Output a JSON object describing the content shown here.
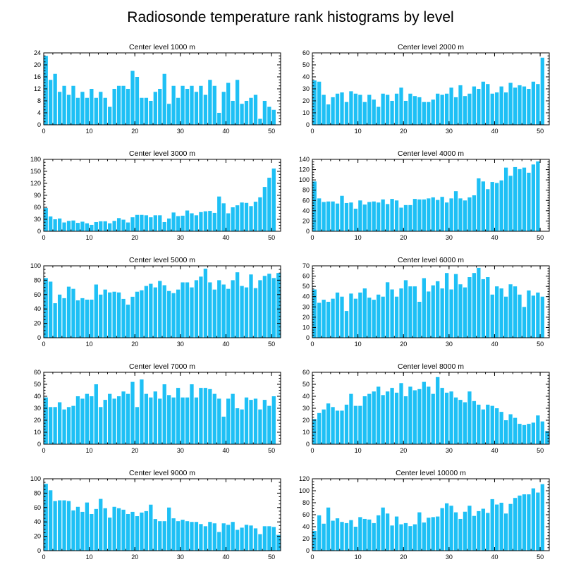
{
  "figure": {
    "title": "Radiosonde temperature rank histograms by level",
    "bar_color": "#1ec0f5",
    "axis_color": "#000000"
  },
  "chart_data": [
    {
      "type": "bar",
      "title": "Center level 1000 m",
      "x": [
        0,
        1,
        2,
        3,
        4,
        5,
        6,
        7,
        8,
        9,
        10,
        11,
        12,
        13,
        14,
        15,
        16,
        17,
        18,
        19,
        20,
        21,
        22,
        23,
        24,
        25,
        26,
        27,
        28,
        29,
        30,
        31,
        32,
        33,
        34,
        35,
        36,
        37,
        38,
        39,
        40,
        41,
        42,
        43,
        44,
        45,
        46,
        47,
        48,
        49,
        50,
        51
      ],
      "values": [
        23,
        15,
        17,
        11,
        13,
        10,
        13,
        9,
        11,
        9,
        12,
        9,
        11,
        9,
        6,
        12,
        13,
        13,
        12,
        18,
        16,
        9,
        9,
        8,
        11,
        12,
        17,
        7,
        13,
        9,
        13,
        12,
        13,
        11,
        13,
        10,
        15,
        13,
        4,
        11,
        14,
        8,
        15,
        7,
        8,
        9,
        10,
        2,
        8,
        6,
        5,
        0
      ],
      "xlim": [
        0,
        52
      ],
      "ylim": [
        0,
        24
      ],
      "xticks": [
        0,
        10,
        20,
        30,
        40,
        50
      ],
      "yticks": [
        0,
        4,
        8,
        12,
        16,
        20,
        24
      ]
    },
    {
      "type": "bar",
      "title": "Center level 2000 m",
      "x": [
        0,
        1,
        2,
        3,
        4,
        5,
        6,
        7,
        8,
        9,
        10,
        11,
        12,
        13,
        14,
        15,
        16,
        17,
        18,
        19,
        20,
        21,
        22,
        23,
        24,
        25,
        26,
        27,
        28,
        29,
        30,
        31,
        32,
        33,
        34,
        35,
        36,
        37,
        38,
        39,
        40,
        41,
        42,
        43,
        44,
        45,
        46,
        47,
        48,
        49,
        50,
        51
      ],
      "values": [
        37,
        36,
        25,
        17,
        23,
        26,
        27,
        19,
        28,
        26,
        25,
        19,
        25,
        21,
        15,
        26,
        25,
        20,
        26,
        31,
        20,
        26,
        24,
        23,
        19,
        19,
        21,
        26,
        25,
        26,
        31,
        23,
        33,
        24,
        26,
        32,
        30,
        36,
        34,
        26,
        27,
        32,
        27,
        35,
        31,
        33,
        32,
        30,
        36,
        34,
        56,
        0
      ],
      "xlim": [
        0,
        52
      ],
      "ylim": [
        0,
        60
      ],
      "xticks": [
        0,
        10,
        20,
        30,
        40,
        50
      ],
      "yticks": [
        0,
        10,
        20,
        30,
        40,
        50,
        60
      ]
    },
    {
      "type": "bar",
      "title": "Center level 3000 m",
      "x": [
        0,
        1,
        2,
        3,
        4,
        5,
        6,
        7,
        8,
        9,
        10,
        11,
        12,
        13,
        14,
        15,
        16,
        17,
        18,
        19,
        20,
        21,
        22,
        23,
        24,
        25,
        26,
        27,
        28,
        29,
        30,
        31,
        32,
        33,
        34,
        35,
        36,
        37,
        38,
        39,
        40,
        41,
        42,
        43,
        44,
        45,
        46,
        47,
        48,
        49,
        50,
        51
      ],
      "values": [
        58,
        37,
        30,
        32,
        22,
        26,
        27,
        21,
        24,
        20,
        16,
        23,
        25,
        25,
        20,
        26,
        33,
        29,
        22,
        35,
        41,
        41,
        40,
        35,
        40,
        40,
        23,
        32,
        47,
        38,
        39,
        52,
        45,
        40,
        48,
        50,
        51,
        46,
        87,
        70,
        45,
        60,
        65,
        72,
        71,
        63,
        74,
        85,
        111,
        134,
        157,
        0
      ],
      "xlim": [
        0,
        52
      ],
      "ylim": [
        0,
        180
      ],
      "xticks": [
        0,
        10,
        20,
        30,
        40,
        50
      ],
      "yticks": [
        0,
        30,
        60,
        90,
        120,
        150,
        180
      ]
    },
    {
      "type": "bar",
      "title": "Center level 4000 m",
      "x": [
        0,
        1,
        2,
        3,
        4,
        5,
        6,
        7,
        8,
        9,
        10,
        11,
        12,
        13,
        14,
        15,
        16,
        17,
        18,
        19,
        20,
        21,
        22,
        23,
        24,
        25,
        26,
        27,
        28,
        29,
        30,
        31,
        32,
        33,
        34,
        35,
        36,
        37,
        38,
        39,
        40,
        41,
        42,
        43,
        44,
        45,
        46,
        47,
        48,
        49,
        50,
        51
      ],
      "values": [
        97,
        64,
        57,
        58,
        58,
        54,
        69,
        55,
        56,
        44,
        60,
        52,
        57,
        58,
        56,
        62,
        53,
        63,
        60,
        46,
        51,
        51,
        63,
        62,
        62,
        64,
        66,
        61,
        67,
        56,
        64,
        78,
        64,
        60,
        66,
        70,
        103,
        97,
        82,
        96,
        94,
        99,
        124,
        108,
        125,
        121,
        124,
        114,
        130,
        136,
        0,
        0
      ],
      "xlim": [
        0,
        52
      ],
      "ylim": [
        0,
        140
      ],
      "xticks": [
        0,
        10,
        20,
        30,
        40,
        50
      ],
      "yticks": [
        0,
        20,
        40,
        60,
        80,
        100,
        120,
        140
      ]
    },
    {
      "type": "bar",
      "title": "Center level 5000 m",
      "x": [
        0,
        1,
        2,
        3,
        4,
        5,
        6,
        7,
        8,
        9,
        10,
        11,
        12,
        13,
        14,
        15,
        16,
        17,
        18,
        19,
        20,
        21,
        22,
        23,
        24,
        25,
        26,
        27,
        28,
        29,
        30,
        31,
        32,
        33,
        34,
        35,
        36,
        37,
        38,
        39,
        40,
        41,
        42,
        43,
        44,
        45,
        46,
        47,
        48,
        49,
        50,
        51
      ],
      "values": [
        83,
        78,
        48,
        60,
        55,
        71,
        68,
        52,
        55,
        53,
        53,
        74,
        60,
        67,
        63,
        64,
        63,
        54,
        46,
        57,
        64,
        66,
        72,
        75,
        70,
        79,
        73,
        65,
        62,
        67,
        77,
        77,
        70,
        80,
        85,
        96,
        77,
        67,
        80,
        74,
        68,
        80,
        91,
        72,
        70,
        88,
        69,
        80,
        86,
        89,
        83,
        90
      ],
      "xlim": [
        0,
        52
      ],
      "ylim": [
        0,
        100
      ],
      "xticks": [
        0,
        10,
        20,
        30,
        40,
        50
      ],
      "yticks": [
        0,
        20,
        40,
        60,
        80,
        100
      ]
    },
    {
      "type": "bar",
      "title": "Center level 6000 m",
      "x": [
        0,
        1,
        2,
        3,
        4,
        5,
        6,
        7,
        8,
        9,
        10,
        11,
        12,
        13,
        14,
        15,
        16,
        17,
        18,
        19,
        20,
        21,
        22,
        23,
        24,
        25,
        26,
        27,
        28,
        29,
        30,
        31,
        32,
        33,
        34,
        35,
        36,
        37,
        38,
        39,
        40,
        41,
        42,
        43,
        44,
        45,
        46,
        47,
        48,
        49,
        50,
        51
      ],
      "values": [
        47,
        34,
        37,
        35,
        38,
        44,
        40,
        26,
        43,
        38,
        44,
        48,
        39,
        37,
        42,
        40,
        54,
        47,
        40,
        48,
        56,
        50,
        50,
        35,
        58,
        45,
        51,
        55,
        48,
        63,
        47,
        62,
        52,
        49,
        59,
        63,
        68,
        57,
        59,
        42,
        50,
        48,
        40,
        52,
        50,
        42,
        30,
        46,
        41,
        44,
        40,
        0
      ],
      "xlim": [
        0,
        52
      ],
      "ylim": [
        0,
        70
      ],
      "xticks": [
        0,
        10,
        20,
        30,
        40,
        50
      ],
      "yticks": [
        0,
        10,
        20,
        30,
        40,
        50,
        60,
        70
      ]
    },
    {
      "type": "bar",
      "title": "Center level 7000 m",
      "x": [
        0,
        1,
        2,
        3,
        4,
        5,
        6,
        7,
        8,
        9,
        10,
        11,
        12,
        13,
        14,
        15,
        16,
        17,
        18,
        19,
        20,
        21,
        22,
        23,
        24,
        25,
        26,
        27,
        28,
        29,
        30,
        31,
        32,
        33,
        34,
        35,
        36,
        37,
        38,
        39,
        40,
        41,
        42,
        43,
        44,
        45,
        46,
        47,
        48,
        49,
        50,
        51
      ],
      "values": [
        39,
        31,
        31,
        35,
        29,
        31,
        32,
        40,
        38,
        42,
        40,
        50,
        31,
        37,
        42,
        38,
        40,
        44,
        42,
        52,
        31,
        54,
        42,
        39,
        44,
        38,
        50,
        41,
        39,
        47,
        39,
        39,
        50,
        39,
        47,
        47,
        46,
        42,
        38,
        23,
        38,
        42,
        30,
        29,
        39,
        37,
        38,
        29,
        37,
        32,
        40,
        0
      ],
      "xlim": [
        0,
        52
      ],
      "ylim": [
        0,
        60
      ],
      "xticks": [
        0,
        10,
        20,
        30,
        40,
        50
      ],
      "yticks": [
        0,
        10,
        20,
        30,
        40,
        50,
        60
      ]
    },
    {
      "type": "bar",
      "title": "Center level 8000 m",
      "x": [
        0,
        1,
        2,
        3,
        4,
        5,
        6,
        7,
        8,
        9,
        10,
        11,
        12,
        13,
        14,
        15,
        16,
        17,
        18,
        19,
        20,
        21,
        22,
        23,
        24,
        25,
        26,
        27,
        28,
        29,
        30,
        31,
        32,
        33,
        34,
        35,
        36,
        37,
        38,
        39,
        40,
        41,
        42,
        43,
        44,
        45,
        46,
        47,
        48,
        49,
        50,
        51
      ],
      "values": [
        21,
        26,
        29,
        34,
        31,
        28,
        28,
        33,
        42,
        32,
        32,
        40,
        42,
        44,
        48,
        41,
        44,
        47,
        43,
        51,
        40,
        48,
        45,
        46,
        52,
        48,
        42,
        56,
        47,
        43,
        44,
        39,
        37,
        35,
        44,
        36,
        33,
        29,
        33,
        32,
        30,
        27,
        20,
        25,
        22,
        17,
        16,
        17,
        18,
        24,
        19,
        11
      ],
      "xlim": [
        0,
        52
      ],
      "ylim": [
        0,
        60
      ],
      "xticks": [
        0,
        10,
        20,
        30,
        40,
        50
      ],
      "yticks": [
        0,
        10,
        20,
        30,
        40,
        50,
        60
      ]
    },
    {
      "type": "bar",
      "title": "Center level 9000 m",
      "x": [
        0,
        1,
        2,
        3,
        4,
        5,
        6,
        7,
        8,
        9,
        10,
        11,
        12,
        13,
        14,
        15,
        16,
        17,
        18,
        19,
        20,
        21,
        22,
        23,
        24,
        25,
        26,
        27,
        28,
        29,
        30,
        31,
        32,
        33,
        34,
        35,
        36,
        37,
        38,
        39,
        40,
        41,
        42,
        43,
        44,
        45,
        46,
        47,
        48,
        49,
        50,
        51
      ],
      "values": [
        93,
        84,
        69,
        70,
        70,
        69,
        56,
        61,
        54,
        67,
        51,
        58,
        72,
        59,
        46,
        61,
        59,
        57,
        51,
        54,
        48,
        53,
        55,
        64,
        44,
        41,
        41,
        60,
        45,
        41,
        43,
        41,
        40,
        40,
        37,
        34,
        40,
        38,
        26,
        38,
        36,
        40,
        29,
        32,
        36,
        35,
        31,
        23,
        34,
        34,
        33,
        22
      ],
      "xlim": [
        0,
        52
      ],
      "ylim": [
        0,
        100
      ],
      "xticks": [
        0,
        10,
        20,
        30,
        40,
        50
      ],
      "yticks": [
        0,
        20,
        40,
        60,
        80,
        100
      ]
    },
    {
      "type": "bar",
      "title": "Center level 10000 m",
      "x": [
        0,
        1,
        2,
        3,
        4,
        5,
        6,
        7,
        8,
        9,
        10,
        11,
        12,
        13,
        14,
        15,
        16,
        17,
        18,
        19,
        20,
        21,
        22,
        23,
        24,
        25,
        26,
        27,
        28,
        29,
        30,
        31,
        32,
        33,
        34,
        35,
        36,
        37,
        38,
        39,
        40,
        41,
        42,
        43,
        44,
        45,
        46,
        47,
        48,
        49,
        50,
        51
      ],
      "values": [
        33,
        59,
        45,
        72,
        50,
        54,
        48,
        46,
        51,
        40,
        56,
        53,
        52,
        46,
        59,
        72,
        62,
        42,
        57,
        44,
        46,
        41,
        44,
        64,
        47,
        55,
        56,
        57,
        71,
        79,
        75,
        64,
        53,
        65,
        75,
        58,
        66,
        70,
        63,
        86,
        77,
        80,
        62,
        78,
        88,
        92,
        94,
        94,
        104,
        97,
        111,
        0
      ],
      "xlim": [
        0,
        52
      ],
      "ylim": [
        0,
        120
      ],
      "xticks": [
        0,
        10,
        20,
        30,
        40,
        50
      ],
      "yticks": [
        0,
        20,
        40,
        60,
        80,
        100,
        120
      ]
    }
  ]
}
